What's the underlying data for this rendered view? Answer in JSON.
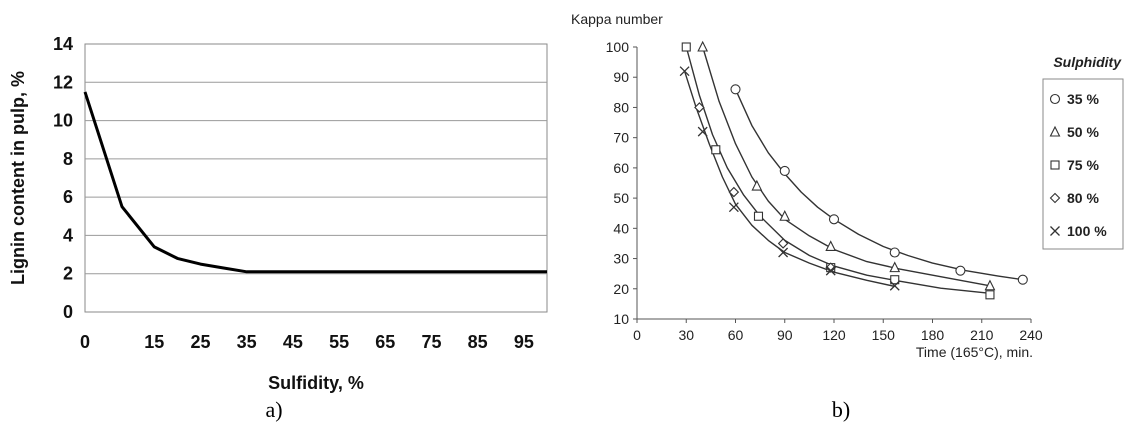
{
  "chart_data": [
    {
      "type": "line",
      "xlabel": "Sulfidity, %",
      "ylabel": "Lignin content in pulp, %",
      "caption": "a)",
      "xlim": [
        0,
        100
      ],
      "ylim": [
        0,
        14
      ],
      "x_ticks": [
        "0",
        "15",
        "25",
        "35",
        "45",
        "55",
        "65",
        "75",
        "85",
        "95"
      ],
      "y_ticks": [
        "0",
        "2",
        "4",
        "6",
        "8",
        "10",
        "12",
        "14"
      ],
      "grid": "horizontal",
      "series": [
        {
          "x": [
            0,
            8,
            15,
            20,
            25,
            30,
            35,
            100
          ],
          "values": [
            11.5,
            5.5,
            3.4,
            2.8,
            2.5,
            2.3,
            2.1,
            2.1
          ]
        }
      ]
    },
    {
      "type": "scatter",
      "title": "Kappa number",
      "xlabel": "Time (165°C), min.",
      "caption": "b)",
      "xlim": [
        0,
        240
      ],
      "ylim": [
        10,
        100
      ],
      "x_ticks": [
        "0",
        "30",
        "60",
        "90",
        "120",
        "150",
        "180",
        "210",
        "240"
      ],
      "y_ticks": [
        "10",
        "20",
        "30",
        "40",
        "50",
        "60",
        "70",
        "80",
        "90",
        "100"
      ],
      "grid": "none",
      "legend_title": "Sulphidity",
      "legend_position": "right",
      "series": [
        {
          "name": "35 %",
          "marker": "circle",
          "points": [
            [
              60,
              86
            ],
            [
              90,
              59
            ],
            [
              120,
              43
            ],
            [
              157,
              32
            ],
            [
              197,
              26
            ],
            [
              235,
              23
            ]
          ],
          "fit": [
            [
              60,
              86
            ],
            [
              70,
              74
            ],
            [
              80,
              65
            ],
            [
              90,
              58
            ],
            [
              100,
              52
            ],
            [
              110,
              47
            ],
            [
              120,
              43
            ],
            [
              135,
              38
            ],
            [
              150,
              34
            ],
            [
              165,
              31
            ],
            [
              180,
              28.5
            ],
            [
              200,
              26
            ],
            [
              220,
              24.2
            ],
            [
              235,
              23
            ]
          ]
        },
        {
          "name": "50 %",
          "marker": "triangle",
          "points": [
            [
              40,
              100
            ],
            [
              73,
              54
            ],
            [
              90,
              44
            ],
            [
              118,
              34
            ],
            [
              157,
              27
            ],
            [
              215,
              21
            ]
          ],
          "fit": [
            [
              40,
              100
            ],
            [
              50,
              82
            ],
            [
              60,
              68
            ],
            [
              70,
              57
            ],
            [
              80,
              49
            ],
            [
              90,
              43
            ],
            [
              105,
              37.5
            ],
            [
              120,
              33
            ],
            [
              140,
              29
            ],
            [
              160,
              26.5
            ],
            [
              185,
              24
            ],
            [
              215,
              21
            ]
          ]
        },
        {
          "name": "75 %",
          "marker": "square",
          "points": [
            [
              30,
              100
            ],
            [
              48,
              66
            ],
            [
              74,
              44
            ],
            [
              118,
              27
            ],
            [
              157,
              23
            ],
            [
              215,
              18
            ]
          ],
          "fit": [
            [
              30,
              100
            ],
            [
              38,
              84
            ],
            [
              46,
              71
            ],
            [
              55,
              60
            ],
            [
              65,
              51
            ],
            [
              75,
              44
            ],
            [
              90,
              36
            ],
            [
              105,
              31
            ],
            [
              120,
              27.5
            ],
            [
              140,
              24.5
            ],
            [
              160,
              22.5
            ],
            [
              185,
              20.2
            ],
            [
              215,
              18.5
            ]
          ]
        },
        {
          "name": "80 %",
          "marker": "diamond",
          "points": [
            [
              38,
              80
            ],
            [
              59,
              52
            ],
            [
              89,
              35
            ],
            [
              118,
              27
            ]
          ],
          "fit": []
        },
        {
          "name": "100 %",
          "marker": "x",
          "points": [
            [
              29,
              92
            ],
            [
              40,
              72
            ],
            [
              59,
              47
            ],
            [
              89,
              32
            ],
            [
              118,
              26
            ],
            [
              157,
              21
            ]
          ],
          "fit": [
            [
              29,
              92
            ],
            [
              36,
              80
            ],
            [
              44,
              68
            ],
            [
              52,
              57
            ],
            [
              60,
              48
            ],
            [
              70,
              41
            ],
            [
              80,
              36
            ],
            [
              90,
              32
            ],
            [
              105,
              28.5
            ],
            [
              120,
              25.5
            ],
            [
              140,
              22.8
            ],
            [
              157,
              20.8
            ]
          ]
        }
      ]
    }
  ]
}
